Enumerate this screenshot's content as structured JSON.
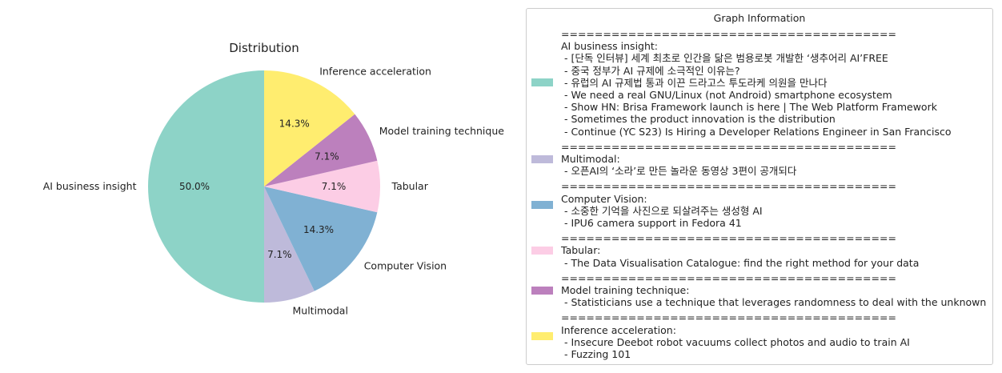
{
  "chart_data": {
    "type": "pie",
    "title": "Distribution",
    "labels": [
      "AI business insight",
      "Multimodal",
      "Computer Vision",
      "Tabular",
      "Model training technique",
      "Inference acceleration"
    ],
    "values": [
      7,
      1,
      2,
      1,
      1,
      2
    ],
    "percent_labels": [
      "50.0%",
      "7.1%",
      "14.3%",
      "7.1%",
      "7.1%",
      "14.3%"
    ],
    "colors": [
      "#8dd3c7",
      "#bebada",
      "#80b1d3",
      "#fccde5",
      "#bc80bd",
      "#ffed6f"
    ],
    "start_angle_deg": 90,
    "direction": "counterclockwise"
  },
  "legend": {
    "title": "Graph Information",
    "separator": "========================================",
    "groups": [
      {
        "name": "AI business insight:",
        "items": [
          " - [단독 인터뷰] 세계 최초로 인간을 닮은 범용로봇 개발한 ‘생추어리 AI’FREE",
          " - 중국 정부가 AI 규제에 소극적인 이유는?",
          " - 유럽의 AI 규제법 통과 이끈 드라고스 투도라케 의원을 만나다",
          " - We need a real GNU/Linux (not Android) smartphone ecosystem",
          " - Show HN: Brisa Framework launch is here | The Web Platform Framework",
          " - Sometimes the product innovation is the distribution",
          " - Continue (YC S23) Is Hiring a Developer Relations Engineer in San Francisco"
        ]
      },
      {
        "name": "Multimodal:",
        "items": [
          " - 오픈AI의 ‘소라’로 만든 놀라운 동영상 3편이 공개되다"
        ]
      },
      {
        "name": "Computer Vision:",
        "items": [
          " - 소중한 기억을 사진으로 되살려주는 생성형 AI",
          " - IPU6 camera support in Fedora 41"
        ]
      },
      {
        "name": "Tabular:",
        "items": [
          " - The Data Visualisation Catalogue: find the right method for your data"
        ]
      },
      {
        "name": "Model training technique:",
        "items": [
          " - Statisticians use a technique that leverages randomness to deal with the unknown"
        ]
      },
      {
        "name": "Inference acceleration:",
        "items": [
          " - Insecure Deebot robot vacuums collect photos and audio to train AI",
          " - Fuzzing 101"
        ]
      }
    ]
  }
}
